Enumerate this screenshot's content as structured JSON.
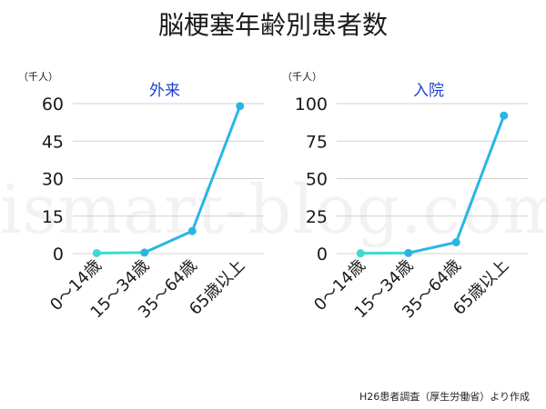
{
  "page": {
    "title": "脳梗塞年齢別患者数",
    "source": "H26患者調査（厚生労働省）より作成",
    "watermark": "ismart-blog.com"
  },
  "colors": {
    "line": "#29b6e6",
    "first_segment": "#3fd9d0",
    "grid": "#d0d0d0",
    "axis_text": "#1a1a1a",
    "panel_title": "#2040d0"
  },
  "chart_data": [
    {
      "type": "line",
      "title": "外来",
      "unit": "（千人）",
      "categories": [
        "0～14歳",
        "15～34歳",
        "35～64歳",
        "65歳以上"
      ],
      "values": [
        0.2,
        0.4,
        9,
        59
      ],
      "ylim": [
        0,
        60
      ],
      "yticks": [
        0,
        15,
        30,
        45,
        60
      ],
      "grid": true
    },
    {
      "type": "line",
      "title": "入院",
      "unit": "（千人）",
      "categories": [
        "0～14歳",
        "15～34歳",
        "35～64歳",
        "65歳以上"
      ],
      "values": [
        0.2,
        0.4,
        7.5,
        92
      ],
      "ylim": [
        0,
        100
      ],
      "yticks": [
        0,
        25,
        50,
        75,
        100
      ],
      "grid": true
    }
  ]
}
